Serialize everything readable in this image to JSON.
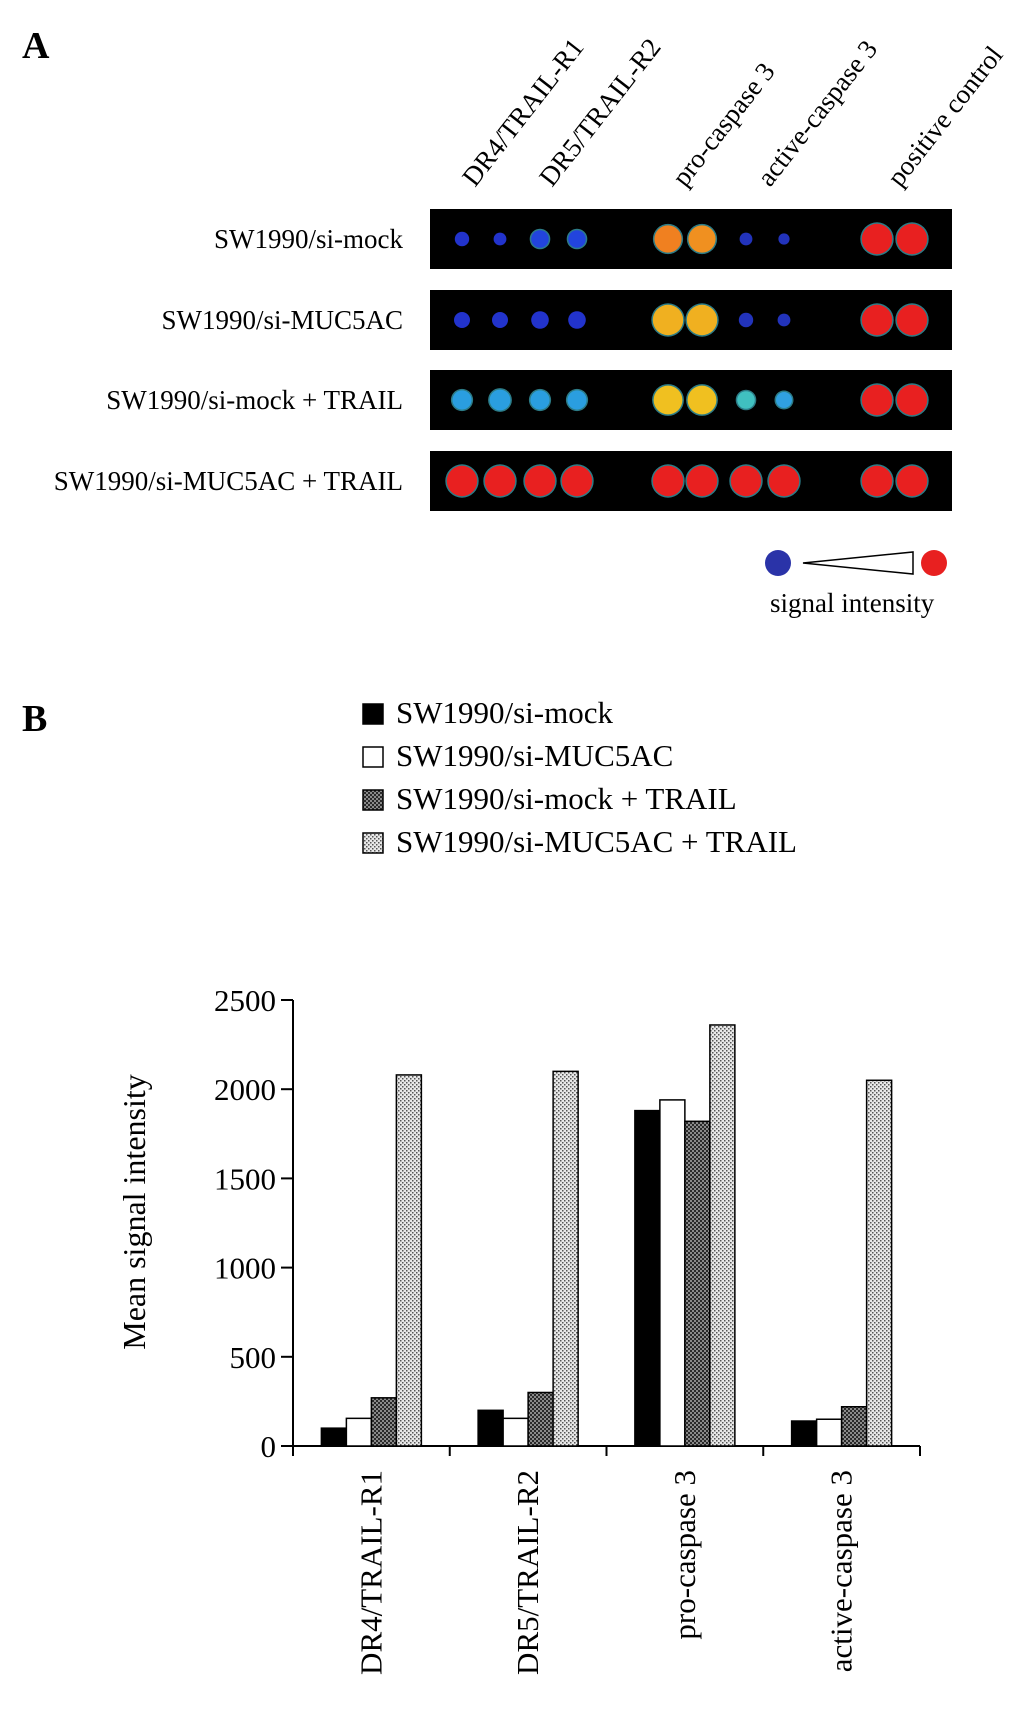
{
  "panel_a": {
    "letter": "A",
    "column_labels": [
      "DR4/TRAIL-R1",
      "DR5/TRAIL-R2",
      "pro-caspase 3",
      "active-caspase 3",
      "positive control"
    ],
    "row_labels": [
      "SW1990/si-mock",
      "SW1990/si-MUC5AC",
      "SW1990/si-mock + TRAIL",
      "SW1990/si-MUC5AC + TRAIL"
    ],
    "rows_spots": [
      [
        {
          "c": "#2233cc",
          "r": 0.45
        },
        {
          "c": "#2233cc",
          "r": 0.4
        },
        {
          "c": "#2244dd",
          "r": 0.55
        },
        {
          "c": "#2244dd",
          "r": 0.55
        },
        {
          "c": "#f08020",
          "r": 0.85
        },
        {
          "c": "#f09020",
          "r": 0.85
        },
        {
          "c": "#2233bb",
          "r": 0.4
        },
        {
          "c": "#2233bb",
          "r": 0.35
        },
        {
          "c": "#e82020",
          "r": 0.95
        },
        {
          "c": "#e82020",
          "r": 0.95
        }
      ],
      [
        {
          "c": "#2233cc",
          "r": 0.5
        },
        {
          "c": "#2233cc",
          "r": 0.5
        },
        {
          "c": "#2233cc",
          "r": 0.55
        },
        {
          "c": "#2233cc",
          "r": 0.55
        },
        {
          "c": "#f0b020",
          "r": 0.95
        },
        {
          "c": "#f0b020",
          "r": 0.95
        },
        {
          "c": "#2233bb",
          "r": 0.45
        },
        {
          "c": "#2233bb",
          "r": 0.4
        },
        {
          "c": "#e82020",
          "r": 0.95
        },
        {
          "c": "#e82020",
          "r": 0.95
        }
      ],
      [
        {
          "c": "#2a9ee0",
          "r": 0.6
        },
        {
          "c": "#2a9ee0",
          "r": 0.65
        },
        {
          "c": "#2a9ee0",
          "r": 0.6
        },
        {
          "c": "#2a9ee0",
          "r": 0.6
        },
        {
          "c": "#f0c020",
          "r": 0.9
        },
        {
          "c": "#f0c020",
          "r": 0.9
        },
        {
          "c": "#40c0c0",
          "r": 0.55
        },
        {
          "c": "#30a0e0",
          "r": 0.5
        },
        {
          "c": "#e82020",
          "r": 0.95
        },
        {
          "c": "#e82020",
          "r": 0.95
        }
      ],
      [
        {
          "c": "#e82020",
          "r": 0.95
        },
        {
          "c": "#e82020",
          "r": 0.95
        },
        {
          "c": "#e82020",
          "r": 0.95
        },
        {
          "c": "#e82020",
          "r": 0.95
        },
        {
          "c": "#e82020",
          "r": 0.95
        },
        {
          "c": "#e82020",
          "r": 0.95
        },
        {
          "c": "#e82020",
          "r": 0.95
        },
        {
          "c": "#e82020",
          "r": 0.95
        },
        {
          "c": "#e82020",
          "r": 0.95
        },
        {
          "c": "#e82020",
          "r": 0.95
        }
      ]
    ],
    "scale": {
      "label": "signal intensity",
      "low_color": "#2a33a8",
      "high_color": "#e82020"
    }
  },
  "panel_b": {
    "letter": "B",
    "legend": [
      {
        "label": "SW1990/si-mock",
        "fill": "solid-black"
      },
      {
        "label": "SW1990/si-MUC5AC",
        "fill": "white"
      },
      {
        "label": "SW1990/si-mock + TRAIL",
        "fill": "dark-crosshatch"
      },
      {
        "label": "SW1990/si-MUC5AC  + TRAIL",
        "fill": "light-dots"
      }
    ]
  },
  "chart_data": {
    "type": "bar",
    "title": "",
    "xlabel": "",
    "ylabel": "Mean signal intensity",
    "ylim": [
      0,
      2500
    ],
    "yticks": [
      0,
      500,
      1000,
      1500,
      2000,
      2500
    ],
    "categories": [
      "DR4/TRAIL-R1",
      "DR5/TRAIL-R2",
      "pro-caspase 3",
      "active-caspase 3"
    ],
    "series": [
      {
        "name": "SW1990/si-mock",
        "values": [
          100,
          200,
          1880,
          140
        ]
      },
      {
        "name": "SW1990/si-MUC5AC",
        "values": [
          155,
          155,
          1940,
          150
        ]
      },
      {
        "name": "SW1990/si-mock + TRAIL",
        "values": [
          270,
          300,
          1820,
          220
        ]
      },
      {
        "name": "SW1990/si-MUC5AC  + TRAIL",
        "values": [
          2080,
          2100,
          2360,
          2050
        ]
      }
    ],
    "legend_position": "top"
  }
}
